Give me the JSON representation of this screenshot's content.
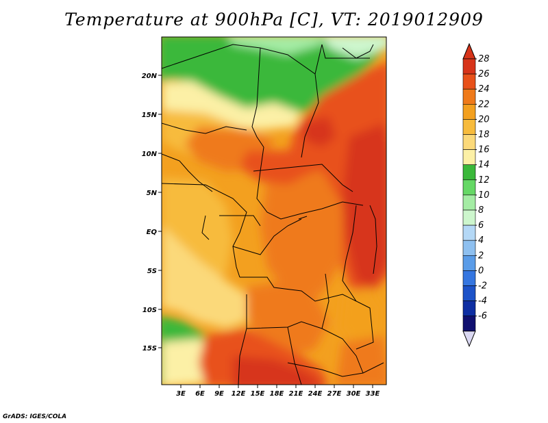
{
  "title": "Temperature at 900hPa [C], VT: 2019012909",
  "credit": "GrADS: IGES/COLA",
  "lat_labels": [
    "20N",
    "15N",
    "10N",
    "5N",
    "EQ",
    "5S",
    "10S",
    "15S"
  ],
  "lon_labels": [
    "3E",
    "6E",
    "9E",
    "12E",
    "15E",
    "18E",
    "21E",
    "24E",
    "27E",
    "30E",
    "33E"
  ],
  "colorbar": {
    "labels": [
      "28",
      "26",
      "24",
      "22",
      "20",
      "18",
      "16",
      "14",
      "12",
      "10",
      "8",
      "6",
      "4",
      "2",
      "0",
      "-2",
      "-4",
      "-6"
    ],
    "colors": [
      "#d7341a",
      "#e8511a",
      "#ef7a1a",
      "#f3a01f",
      "#f7bb3c",
      "#fbd97a",
      "#fcf0a6",
      "#3ab83a",
      "#65d865",
      "#a4eca4",
      "#cdf6cd",
      "#b4d8f6",
      "#8ec0f0",
      "#5a9ce8",
      "#3576e0",
      "#1c52c8",
      "#0e2ea2",
      "#101070"
    ],
    "under_color": "#dad8f2",
    "over_color": "#d7341a"
  }
}
